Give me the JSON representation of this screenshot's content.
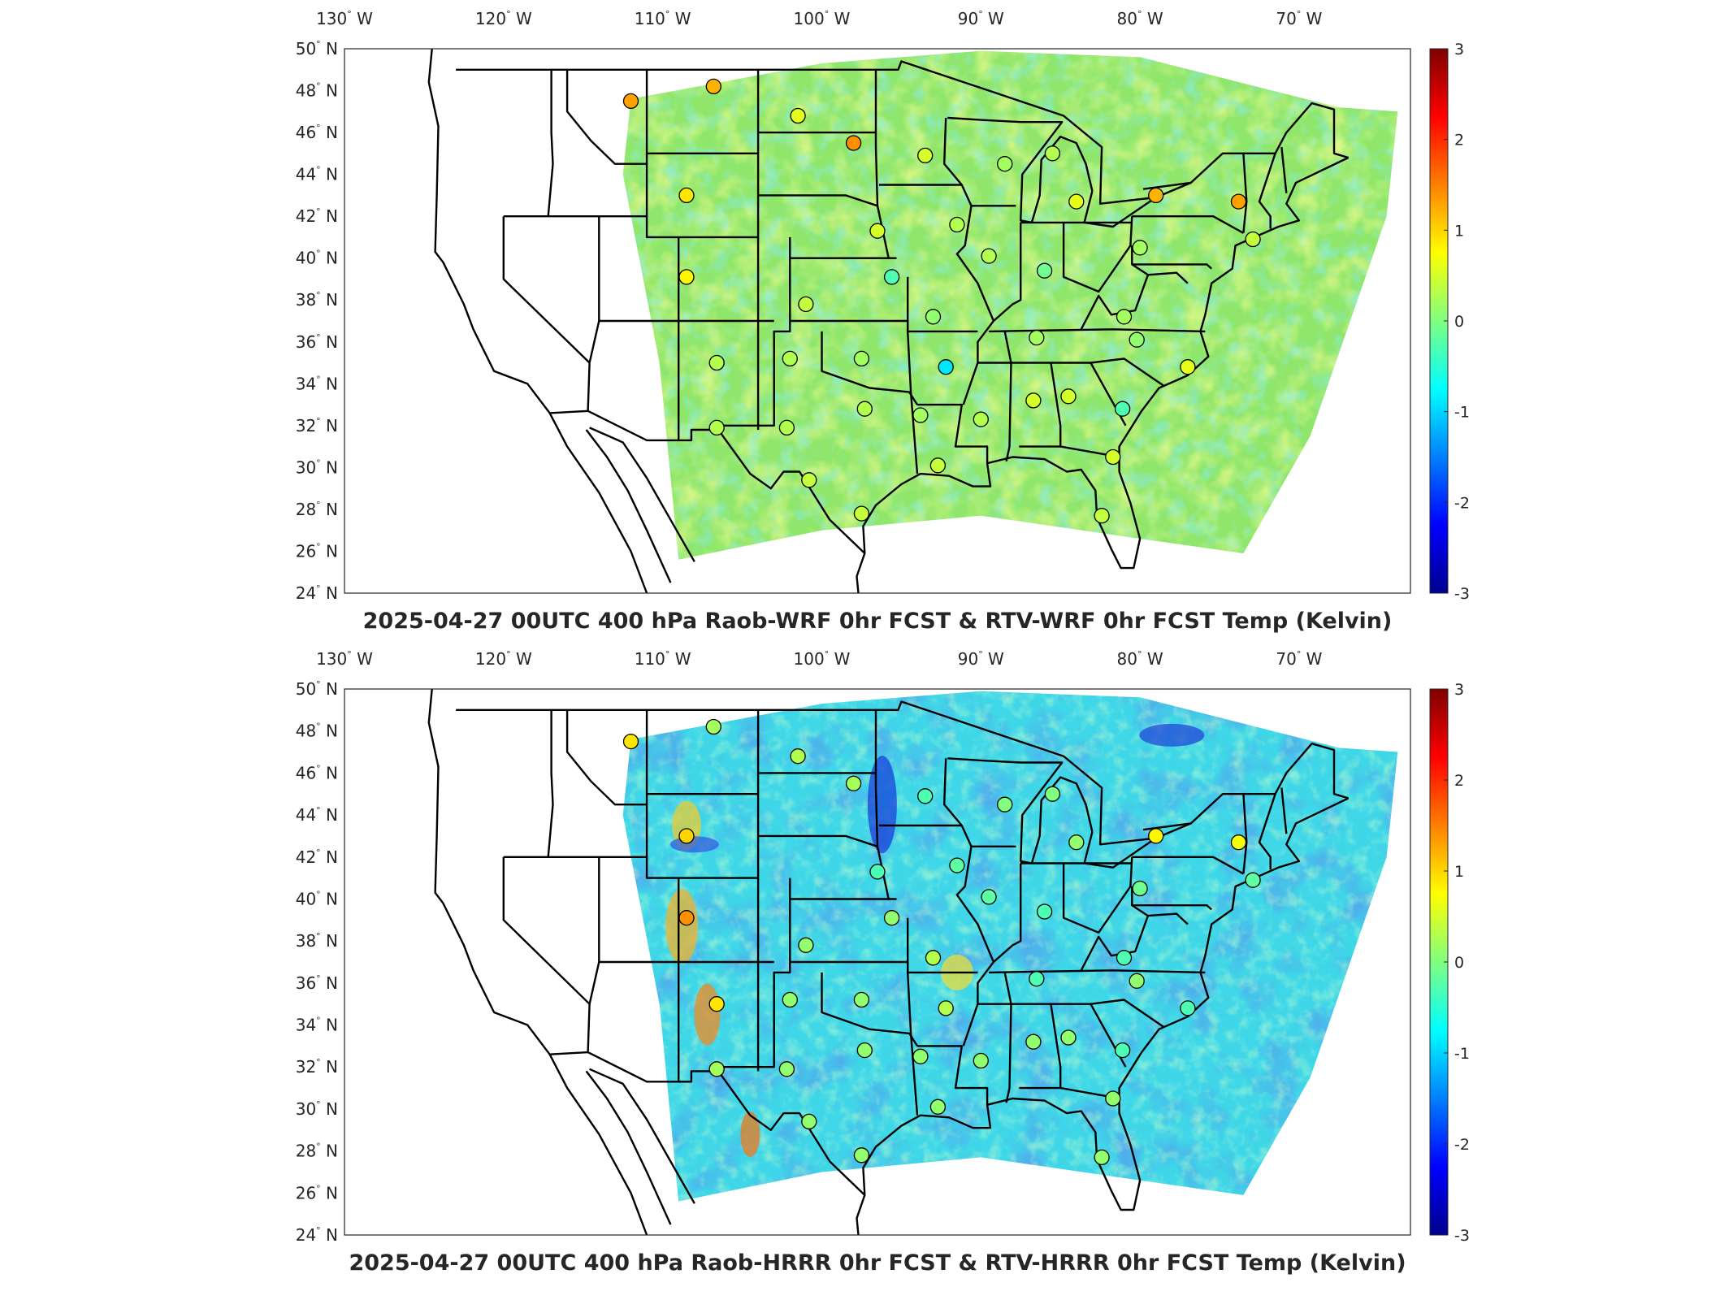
{
  "panels": [
    {
      "id": "wrf",
      "title": "2025-04-27 00UTC 400 hPa Raob-WRF 0hr FCST & RTV-WRF 0hr FCST Temp (Kelvin)",
      "field_base_color": "#8fe66a",
      "field_style": "wrf",
      "stations": [
        {
          "lon": -112.0,
          "lat": 47.5,
          "value": 1.3
        },
        {
          "lon": -106.8,
          "lat": 48.2,
          "value": 1.2
        },
        {
          "lon": -101.5,
          "lat": 46.8,
          "value": 0.6
        },
        {
          "lon": -98.0,
          "lat": 45.5,
          "value": 1.4
        },
        {
          "lon": -93.5,
          "lat": 44.9,
          "value": 0.5
        },
        {
          "lon": -88.5,
          "lat": 44.5,
          "value": 0.2
        },
        {
          "lon": -85.5,
          "lat": 45.0,
          "value": 0.3
        },
        {
          "lon": -84.0,
          "lat": 42.7,
          "value": 0.6
        },
        {
          "lon": -108.5,
          "lat": 43.0,
          "value": 0.9
        },
        {
          "lon": -79.0,
          "lat": 43.0,
          "value": 1.2
        },
        {
          "lon": -73.8,
          "lat": 42.7,
          "value": 1.3
        },
        {
          "lon": -91.5,
          "lat": 41.6,
          "value": 0.3
        },
        {
          "lon": -96.5,
          "lat": 41.3,
          "value": 0.5
        },
        {
          "lon": -89.5,
          "lat": 40.1,
          "value": 0.3
        },
        {
          "lon": -80.0,
          "lat": 40.5,
          "value": 0.2
        },
        {
          "lon": -72.9,
          "lat": 40.9,
          "value": 0.4
        },
        {
          "lon": -108.5,
          "lat": 39.1,
          "value": 0.8
        },
        {
          "lon": -101.0,
          "lat": 37.8,
          "value": 0.4
        },
        {
          "lon": -95.6,
          "lat": 39.1,
          "value": -0.3
        },
        {
          "lon": -86.0,
          "lat": 39.4,
          "value": -0.1
        },
        {
          "lon": -93.0,
          "lat": 37.2,
          "value": 0.1
        },
        {
          "lon": -81.0,
          "lat": 37.2,
          "value": 0.2
        },
        {
          "lon": -86.5,
          "lat": 36.2,
          "value": 0.2
        },
        {
          "lon": -80.2,
          "lat": 36.1,
          "value": 0.1
        },
        {
          "lon": -77.0,
          "lat": 34.8,
          "value": 0.6
        },
        {
          "lon": -106.6,
          "lat": 35.0,
          "value": 0.3
        },
        {
          "lon": -102.0,
          "lat": 35.2,
          "value": 0.3
        },
        {
          "lon": -97.5,
          "lat": 35.2,
          "value": 0.2
        },
        {
          "lon": -92.2,
          "lat": 34.8,
          "value": -0.9
        },
        {
          "lon": -97.3,
          "lat": 32.8,
          "value": 0.3
        },
        {
          "lon": -93.8,
          "lat": 32.5,
          "value": 0.2
        },
        {
          "lon": -90.0,
          "lat": 32.3,
          "value": 0.3
        },
        {
          "lon": -86.7,
          "lat": 33.2,
          "value": 0.5
        },
        {
          "lon": -84.5,
          "lat": 33.4,
          "value": 0.5
        },
        {
          "lon": -81.1,
          "lat": 32.8,
          "value": -0.3
        },
        {
          "lon": -106.6,
          "lat": 31.9,
          "value": 0.3
        },
        {
          "lon": -102.2,
          "lat": 31.9,
          "value": 0.3
        },
        {
          "lon": -92.7,
          "lat": 30.1,
          "value": 0.4
        },
        {
          "lon": -81.7,
          "lat": 30.5,
          "value": 0.5
        },
        {
          "lon": -100.8,
          "lat": 29.4,
          "value": 0.4
        },
        {
          "lon": -97.5,
          "lat": 27.8,
          "value": 0.4
        },
        {
          "lon": -82.4,
          "lat": 27.7,
          "value": 0.4
        }
      ]
    },
    {
      "id": "hrrr",
      "title": "2025-04-27 00UTC 400 hPa Raob-HRRR 0hr FCST & RTV-HRRR 0hr FCST Temp (Kelvin)",
      "field_base_color": "#3fd7e8",
      "field_style": "hrrr",
      "stations": [
        {
          "lon": -112.0,
          "lat": 47.5,
          "value": 0.9
        },
        {
          "lon": -106.8,
          "lat": 48.2,
          "value": 0.2
        },
        {
          "lon": -101.5,
          "lat": 46.8,
          "value": 0.3
        },
        {
          "lon": -98.0,
          "lat": 45.5,
          "value": 0.2
        },
        {
          "lon": -93.5,
          "lat": 44.9,
          "value": -0.3
        },
        {
          "lon": -88.5,
          "lat": 44.5,
          "value": 0.0
        },
        {
          "lon": -85.5,
          "lat": 45.0,
          "value": 0.0
        },
        {
          "lon": -84.0,
          "lat": 42.7,
          "value": 0.1
        },
        {
          "lon": -108.5,
          "lat": 43.0,
          "value": 1.0
        },
        {
          "lon": -79.0,
          "lat": 43.0,
          "value": 0.8
        },
        {
          "lon": -73.8,
          "lat": 42.7,
          "value": 0.7
        },
        {
          "lon": -91.5,
          "lat": 41.6,
          "value": -0.2
        },
        {
          "lon": -96.5,
          "lat": 41.3,
          "value": -0.3
        },
        {
          "lon": -89.5,
          "lat": 40.1,
          "value": -0.2
        },
        {
          "lon": -80.0,
          "lat": 40.5,
          "value": -0.1
        },
        {
          "lon": -72.9,
          "lat": 40.9,
          "value": -0.2
        },
        {
          "lon": -108.5,
          "lat": 39.1,
          "value": 1.4
        },
        {
          "lon": -101.0,
          "lat": 37.8,
          "value": 0.1
        },
        {
          "lon": -95.6,
          "lat": 39.1,
          "value": 0.1
        },
        {
          "lon": -86.0,
          "lat": 39.4,
          "value": -0.3
        },
        {
          "lon": -93.0,
          "lat": 37.2,
          "value": 0.3
        },
        {
          "lon": -81.0,
          "lat": 37.2,
          "value": -0.3
        },
        {
          "lon": -86.5,
          "lat": 36.2,
          "value": -0.3
        },
        {
          "lon": -80.2,
          "lat": 36.1,
          "value": 0.1
        },
        {
          "lon": -77.0,
          "lat": 34.8,
          "value": -0.3
        },
        {
          "lon": -106.6,
          "lat": 35.0,
          "value": 0.9
        },
        {
          "lon": -102.0,
          "lat": 35.2,
          "value": 0.1
        },
        {
          "lon": -97.5,
          "lat": 35.2,
          "value": 0.1
        },
        {
          "lon": -92.2,
          "lat": 34.8,
          "value": 0.3
        },
        {
          "lon": -97.3,
          "lat": 32.8,
          "value": 0.1
        },
        {
          "lon": -93.8,
          "lat": 32.5,
          "value": 0.1
        },
        {
          "lon": -90.0,
          "lat": 32.3,
          "value": 0.1
        },
        {
          "lon": -86.7,
          "lat": 33.2,
          "value": 0.1
        },
        {
          "lon": -84.5,
          "lat": 33.4,
          "value": 0.1
        },
        {
          "lon": -81.1,
          "lat": 32.8,
          "value": -0.3
        },
        {
          "lon": -106.6,
          "lat": 31.9,
          "value": 0.2
        },
        {
          "lon": -102.2,
          "lat": 31.9,
          "value": 0.1
        },
        {
          "lon": -92.7,
          "lat": 30.1,
          "value": 0.1
        },
        {
          "lon": -81.7,
          "lat": 30.5,
          "value": 0.1
        },
        {
          "lon": -100.8,
          "lat": 29.4,
          "value": 0.1
        },
        {
          "lon": -97.5,
          "lat": 27.8,
          "value": 0.1
        },
        {
          "lon": -82.4,
          "lat": 27.7,
          "value": 0.1
        }
      ]
    }
  ],
  "axes": {
    "lon_ticks": [
      {
        "value": -130,
        "label": "130",
        "hemi": "W"
      },
      {
        "value": -120,
        "label": "120",
        "hemi": "W"
      },
      {
        "value": -110,
        "label": "110",
        "hemi": "W"
      },
      {
        "value": -100,
        "label": "100",
        "hemi": "W"
      },
      {
        "value": -90,
        "label": "90",
        "hemi": "W"
      },
      {
        "value": -80,
        "label": "80",
        "hemi": "W"
      },
      {
        "value": -70,
        "label": "70",
        "hemi": "W"
      }
    ],
    "lat_ticks": [
      {
        "value": 50,
        "label": "50",
        "hemi": "N"
      },
      {
        "value": 48,
        "label": "48",
        "hemi": "N"
      },
      {
        "value": 46,
        "label": "46",
        "hemi": "N"
      },
      {
        "value": 44,
        "label": "44",
        "hemi": "N"
      },
      {
        "value": 42,
        "label": "42",
        "hemi": "N"
      },
      {
        "value": 40,
        "label": "40",
        "hemi": "N"
      },
      {
        "value": 38,
        "label": "38",
        "hemi": "N"
      },
      {
        "value": 36,
        "label": "36",
        "hemi": "N"
      },
      {
        "value": 34,
        "label": "34",
        "hemi": "N"
      },
      {
        "value": 32,
        "label": "32",
        "hemi": "N"
      },
      {
        "value": 30,
        "label": "30",
        "hemi": "N"
      },
      {
        "value": 28,
        "label": "28",
        "hemi": "N"
      },
      {
        "value": 26,
        "label": "26",
        "hemi": "N"
      },
      {
        "value": 24,
        "label": "24",
        "hemi": "N"
      }
    ],
    "degree_symbol": "°",
    "lon_range": [
      -130,
      -63
    ],
    "lat_range": [
      24,
      50
    ]
  },
  "colorbar": {
    "min": -3,
    "max": 3,
    "ticks": [
      "3",
      "2",
      "1",
      "0",
      "-1",
      "-2",
      "-3"
    ],
    "colormap": "jet",
    "units": "Kelvin"
  }
}
